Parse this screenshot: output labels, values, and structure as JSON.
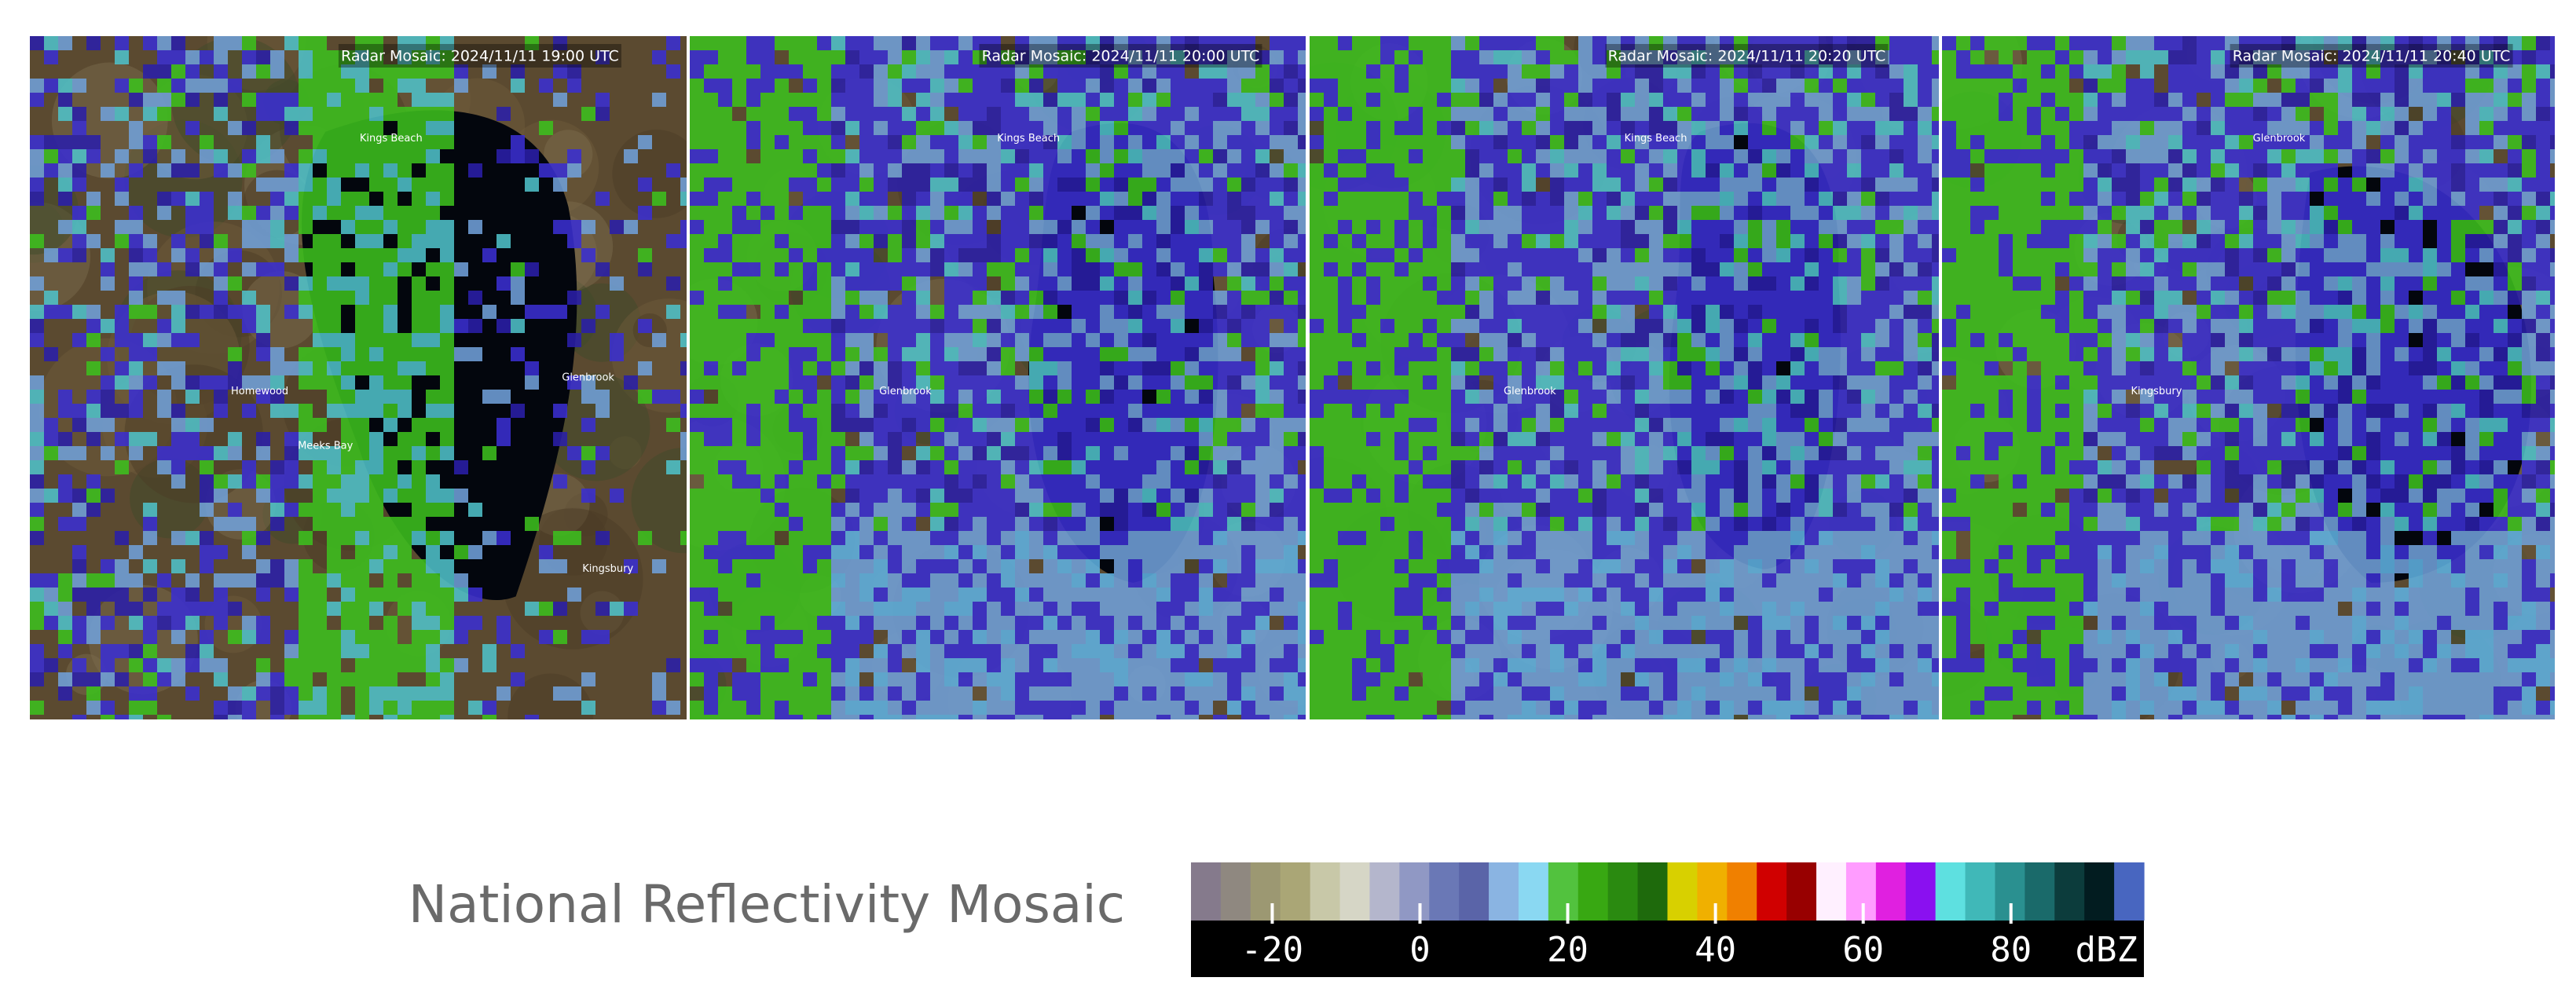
{
  "panels": [
    {
      "title": "Radar Mosaic: 2024/11/11 19:00 UTC",
      "places": [
        "Kings Beach",
        "Homewood",
        "Meeks Bay",
        "Glenbrook",
        "Kingsbury"
      ]
    },
    {
      "title": "Radar Mosaic: 2024/11/11 20:00 UTC",
      "places": [
        "Kings Beach",
        "Glenbrook"
      ]
    },
    {
      "title": "Radar Mosaic: 2024/11/11 20:20 UTC",
      "places": [
        "Kings Beach",
        "Glenbrook"
      ]
    },
    {
      "title": "Radar Mosaic: 2024/11/11 20:40 UTC",
      "places": [
        "Glenbrook",
        "Kingsbury"
      ]
    }
  ],
  "radar_colors": [
    "#3cbf1e",
    "#3a2fd0",
    "#6f9fd8",
    "#4fc0c8",
    "#2a1fa8",
    "#5fb0e0"
  ],
  "colorbar": {
    "title": "National Reflectivity Mosaic",
    "unit": "dBZ",
    "range": [
      -31,
      98
    ],
    "ticks": [
      -20,
      0,
      20,
      40,
      60,
      80
    ],
    "colors": [
      "#857a8c",
      "#8f8880",
      "#9c9872",
      "#aaa676",
      "#c8c8a8",
      "#d6d6c6",
      "#b4b6cc",
      "#9098c4",
      "#6a78b6",
      "#5a64a8",
      "#8ab4e2",
      "#8ad8f2",
      "#52c23e",
      "#38a812",
      "#2a8a10",
      "#1e6a0c",
      "#d8d000",
      "#f0b000",
      "#f08000",
      "#d00000",
      "#980000",
      "#fff0ff",
      "#ff9cff",
      "#e020e0",
      "#8a10f0",
      "#5ee0e0",
      "#40b8b8",
      "#2a9090",
      "#1a6a6a",
      "#0c3c3c",
      "#021c20",
      "#4866c0"
    ]
  }
}
